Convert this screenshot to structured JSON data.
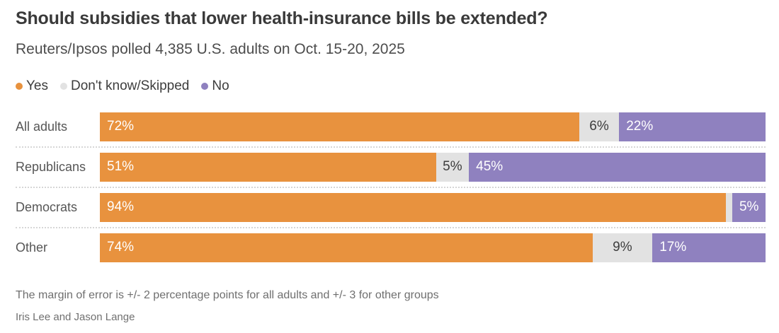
{
  "header": {
    "title": "Should subsidies that lower health-insurance bills be extended?",
    "subtitle": "Reuters/Ipsos polled 4,385 U.S. adults on Oct. 15-20, 2025"
  },
  "legend": [
    {
      "label": "Yes",
      "color": "#e8923e"
    },
    {
      "label": "Don't know/Skipped",
      "color": "#e2e2e2"
    },
    {
      "label": "No",
      "color": "#8f81bf"
    }
  ],
  "chart_data": {
    "type": "bar",
    "stacked": true,
    "orientation": "horizontal",
    "title": "Should subsidies that lower health-insurance bills be extended?",
    "categories": [
      "All adults",
      "Republicans",
      "Democrats",
      "Other"
    ],
    "series": [
      {
        "name": "Yes",
        "color": "#e8923e",
        "label_color": "#ffffff",
        "label_align": "left",
        "values": [
          72,
          51,
          94,
          74
        ],
        "labels": [
          "72%",
          "51%",
          "94%",
          "74%"
        ]
      },
      {
        "name": "Don't know/Skipped",
        "color": "#e2e2e2",
        "label_color": "#3d3d3d",
        "label_align": "center",
        "values": [
          6,
          5,
          1,
          9
        ],
        "labels": [
          "6%",
          "5%",
          "",
          "9%"
        ]
      },
      {
        "name": "No",
        "color": "#8f81bf",
        "label_color": "#ffffff",
        "label_align": "left",
        "values": [
          22,
          45,
          5,
          17
        ],
        "labels": [
          "22%",
          "45%",
          "5%",
          "17%"
        ]
      }
    ],
    "xlim": [
      0,
      100
    ],
    "grid": false,
    "legend_position": "top"
  },
  "footer": {
    "note": "The margin of error is +/- 2 percentage points for all adults and +/- 3 for other groups",
    "byline": "Iris Lee and Jason Lange"
  }
}
